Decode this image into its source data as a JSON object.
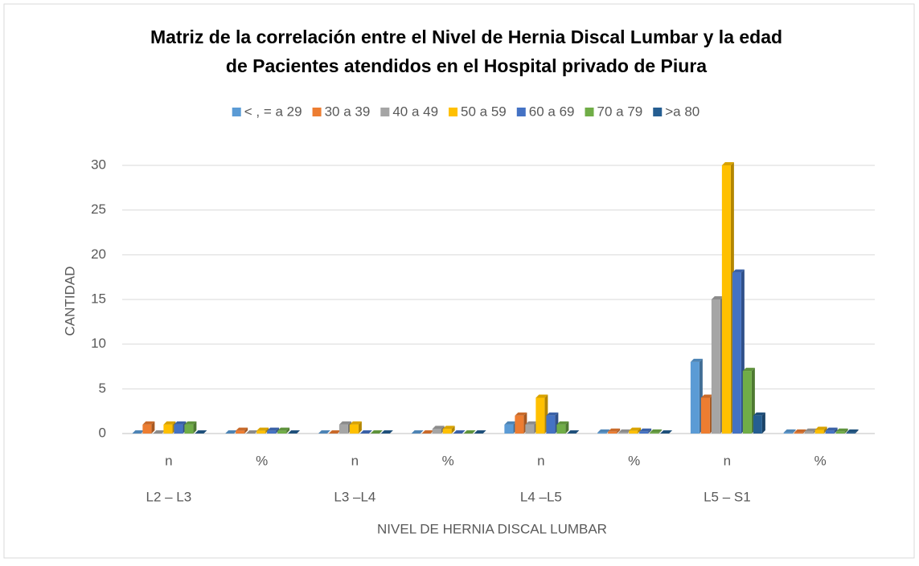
{
  "chart_data": {
    "type": "bar",
    "title": [
      "Matriz de la correlación entre el Nivel de Hernia Discal Lumbar y la edad",
      "de Pacientes atendidos en el Hospital privado de Piura"
    ],
    "x_label": "NIVEL DE HERNIA DISCAL LUMBAR",
    "y_label": "CANTIDAD",
    "categories": [
      "n",
      "%",
      "n",
      "%",
      "n",
      "%",
      "n",
      "%"
    ],
    "groups": [
      "L2 – L3",
      "L3 –L4",
      "L4 –L5",
      "L5 – S1"
    ],
    "series": [
      {
        "name": "< , = a 29",
        "color": "#5b9bd5",
        "values": [
          0,
          0,
          0,
          0,
          1,
          0.1,
          8,
          0.1
        ]
      },
      {
        "name": "30 a 39",
        "color": "#ed7d31",
        "values": [
          1,
          0.3,
          0,
          0,
          2,
          0.2,
          4,
          0.1
        ]
      },
      {
        "name": "40 a 49",
        "color": "#a5a5a5",
        "values": [
          0,
          0,
          1,
          0.5,
          1,
          0.1,
          15,
          0.2
        ]
      },
      {
        "name": "50 a 59",
        "color": "#ffc000",
        "values": [
          1,
          0.3,
          1,
          0.5,
          4,
          0.3,
          30,
          0.4
        ]
      },
      {
        "name": "60 a 69",
        "color": "#4472c4",
        "values": [
          1,
          0.3,
          0,
          0,
          2,
          0.2,
          18,
          0.3
        ]
      },
      {
        "name": "70 a 79",
        "color": "#70ad47",
        "values": [
          1,
          0.3,
          0,
          0,
          1,
          0.1,
          7,
          0.2
        ]
      },
      {
        "name": ">a 80",
        "color": "#255e91",
        "values": [
          0,
          0,
          0,
          0,
          0,
          0,
          2,
          0.1
        ]
      }
    ],
    "ylim": [
      0,
      30
    ],
    "yticks": [
      0,
      5,
      10,
      15,
      20,
      25,
      30
    ],
    "grid": true,
    "legend": "top"
  }
}
